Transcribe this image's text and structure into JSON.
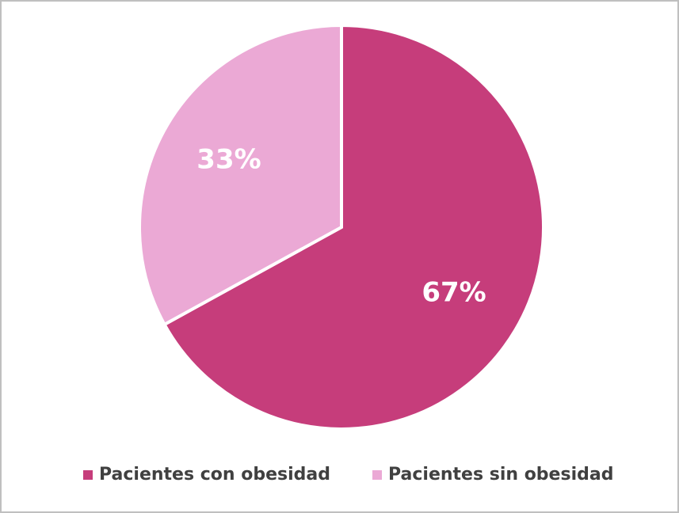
{
  "chart_data": {
    "type": "pie",
    "categories": [
      "Pacientes con obesidad",
      "Pacientes sin obesidad"
    ],
    "values": [
      67,
      33
    ],
    "value_labels": [
      "67%",
      "33%"
    ],
    "colors": [
      "#c63d7b",
      "#eba9d5"
    ],
    "legend": "bottom"
  }
}
